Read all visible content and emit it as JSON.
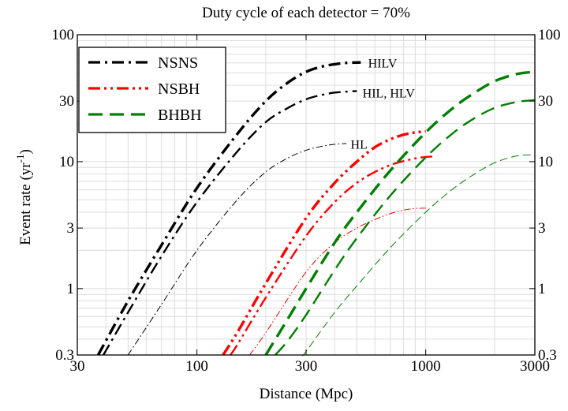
{
  "chart_data": {
    "type": "line",
    "title": "Duty cycle of each detector = 70%",
    "xlabel": "Distance (Mpc)",
    "ylabel": "Event rate (yr",
    "ylabel_sup": "-1",
    "ylabel_close": ")",
    "xscale": "log",
    "yscale": "log",
    "xlim": [
      30,
      3000
    ],
    "ylim": [
      0.3,
      100
    ],
    "x_ticks": [
      30,
      100,
      300,
      1000,
      3000
    ],
    "x_tick_labels": [
      "30",
      "100",
      "300",
      "1000",
      "3000"
    ],
    "y_ticks": [
      0.3,
      1,
      3,
      10,
      30,
      100
    ],
    "y_tick_labels": [
      "0.3",
      "1",
      "3",
      "10",
      "30",
      "100"
    ],
    "grid": true,
    "legend": {
      "placement": "top-left",
      "entries": [
        {
          "label": "NSNS",
          "color": "#000000",
          "dash": "dashdot"
        },
        {
          "label": "NSBH",
          "color": "#ff0000",
          "dash": "dashdotdot"
        },
        {
          "label": "BHBH",
          "color": "#008000",
          "dash": "dashed"
        }
      ]
    },
    "series": [
      {
        "source": "NSNS",
        "network": "HILV",
        "color": "#000000",
        "dash": "dashdot",
        "weight": "thick",
        "x": [
          37,
          50,
          70,
          100,
          150,
          200,
          250,
          300,
          350,
          400,
          450,
          520
        ],
        "y": [
          0.3,
          0.8,
          2.2,
          6.2,
          16.5,
          30,
          42,
          51,
          56,
          58.5,
          60,
          60.5
        ]
      },
      {
        "source": "NSNS",
        "network": "HIL, HLV",
        "color": "#000000",
        "dash": "dashdot",
        "weight": "medium",
        "x": [
          39,
          50,
          70,
          100,
          150,
          200,
          250,
          300,
          350,
          400,
          450,
          500
        ],
        "y": [
          0.3,
          0.65,
          1.8,
          4.8,
          12,
          20.5,
          26.5,
          31,
          33.5,
          35,
          35.6,
          36
        ]
      },
      {
        "source": "NSNS",
        "network": "HL",
        "color": "#000000",
        "dash": "dashdot",
        "weight": "thin",
        "x": [
          50,
          70,
          100,
          150,
          200,
          250,
          300,
          350,
          400,
          450
        ],
        "y": [
          0.3,
          0.75,
          2.0,
          5.0,
          8.3,
          10.7,
          12.3,
          13.2,
          13.7,
          13.9
        ]
      },
      {
        "source": "NSBH",
        "network": "HILV",
        "color": "#ff0000",
        "dash": "dashdotdot",
        "weight": "thick",
        "x": [
          130,
          150,
          200,
          300,
          400,
          500,
          600,
          700,
          800,
          900,
          1000
        ],
        "y": [
          0.3,
          0.45,
          1.1,
          3.6,
          6.8,
          10,
          13,
          15,
          16.3,
          17,
          17.3
        ]
      },
      {
        "source": "NSBH",
        "network": "HIL, HLV",
        "color": "#ff0000",
        "dash": "dashdotdot",
        "weight": "medium",
        "x": [
          140,
          150,
          200,
          300,
          400,
          500,
          600,
          700,
          800,
          900,
          1000,
          1100
        ],
        "y": [
          0.3,
          0.36,
          0.85,
          2.6,
          4.8,
          6.8,
          8.3,
          9.4,
          10.1,
          10.6,
          10.9,
          11
        ]
      },
      {
        "source": "NSBH",
        "network": "HL",
        "color": "#ff0000",
        "dash": "dashdotdot",
        "weight": "thin",
        "x": [
          170,
          200,
          300,
          400,
          500,
          600,
          700,
          800,
          900,
          1000
        ],
        "y": [
          0.3,
          0.45,
          1.35,
          2.3,
          3.0,
          3.5,
          3.9,
          4.15,
          4.28,
          4.3
        ]
      },
      {
        "source": "BHBH",
        "network": "HILV",
        "color": "#008000",
        "dash": "dashed",
        "weight": "thick",
        "x": [
          200,
          250,
          300,
          400,
          500,
          700,
          1000,
          1300,
          1600,
          2000,
          2500,
          3000
        ],
        "y": [
          0.3,
          0.58,
          1.0,
          2.3,
          4.0,
          8.5,
          17,
          26,
          34,
          43,
          49,
          51
        ]
      },
      {
        "source": "BHBH",
        "network": "HIL, HLV",
        "color": "#008000",
        "dash": "dashed",
        "weight": "medium",
        "x": [
          220,
          250,
          300,
          400,
          500,
          700,
          1000,
          1300,
          1600,
          2000,
          2500,
          3000
        ],
        "y": [
          0.3,
          0.39,
          0.62,
          1.4,
          2.5,
          5.4,
          10.8,
          16.5,
          21.5,
          26.5,
          29.5,
          30.5
        ]
      },
      {
        "source": "BHBH",
        "network": "HL",
        "color": "#008000",
        "dash": "dashed",
        "weight": "thin",
        "x": [
          290,
          300,
          400,
          500,
          700,
          1000,
          1300,
          1600,
          2000,
          2500,
          2900
        ],
        "y": [
          0.3,
          0.32,
          0.65,
          1.05,
          2.1,
          4.0,
          6.0,
          7.8,
          9.8,
          11.1,
          11.3
        ]
      }
    ],
    "annotations": [
      {
        "text": "HILV",
        "x": 560,
        "y": 60
      },
      {
        "text": "HIL, HLV",
        "x": 530,
        "y": 35
      },
      {
        "text": "HL",
        "x": 470,
        "y": 13.8
      }
    ]
  }
}
